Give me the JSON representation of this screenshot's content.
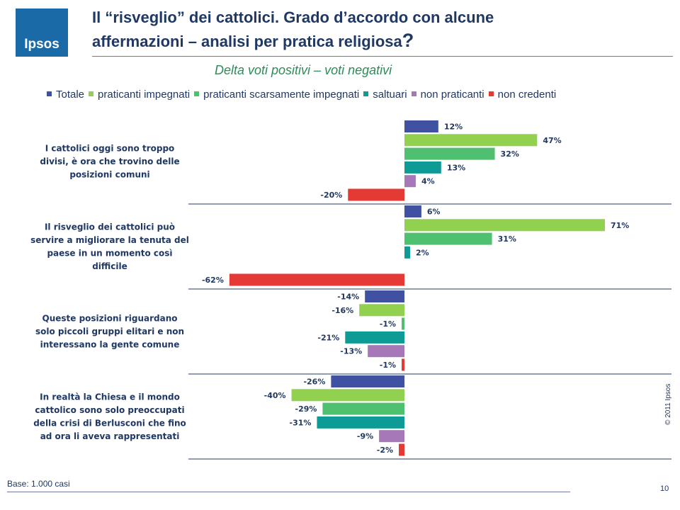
{
  "header": {
    "logo_text": "Ipsos",
    "title_line1": "Il “risveglio” dei cattolici. Grado d’accordo con alcune",
    "title_line2": "affermazioni – analisi per pratica religiosa",
    "title_mark": "?"
  },
  "subtitle": "Delta voti positivi – voti negativi",
  "footer": {
    "base": "Base: 1.000 casi",
    "page": "10",
    "copyright": "© 2011 Ipsos"
  },
  "chart_data": {
    "type": "bar",
    "orientation": "horizontal",
    "value_suffix": "%",
    "categories": [
      [
        "I cattolici oggi sono troppo",
        "divisi, è ora che trovino delle",
        "posizioni comuni"
      ],
      [
        "Il risveglio dei cattolici può",
        "servire a migliorare la tenuta del",
        "paese in un momento così",
        "difficile"
      ],
      [
        "Queste posizioni riguardano",
        "solo piccoli gruppi elitari e non",
        "interessano la gente comune"
      ],
      [
        "In realtà la Chiesa e il mondo",
        "cattolico sono solo preoccupati",
        "della crisi di Berlusconi che fino",
        "ad ora li aveva rappresentati"
      ]
    ],
    "series": [
      {
        "name": "Totale",
        "color": "#3f51a0",
        "values": [
          12,
          6,
          -14,
          -26
        ]
      },
      {
        "name": "praticanti impegnati",
        "color": "#92d050",
        "values": [
          47,
          71,
          -16,
          -40
        ]
      },
      {
        "name": "praticanti scarsamente impegnati",
        "color": "#4fc06f",
        "values": [
          32,
          31,
          -1,
          -29
        ]
      },
      {
        "name": "saltuari",
        "color": "#0f9b95",
        "values": [
          13,
          2,
          -21,
          -31
        ]
      },
      {
        "name": "non praticanti",
        "color": "#a678b8",
        "values": [
          4,
          0,
          -13,
          -9
        ]
      },
      {
        "name": "non credenti",
        "color": "#e53935",
        "values": [
          -20,
          -62,
          -1,
          -2
        ]
      }
    ],
    "hidden_labels": [
      [
        1,
        4
      ]
    ],
    "legend_position": "top",
    "grid": false
  }
}
